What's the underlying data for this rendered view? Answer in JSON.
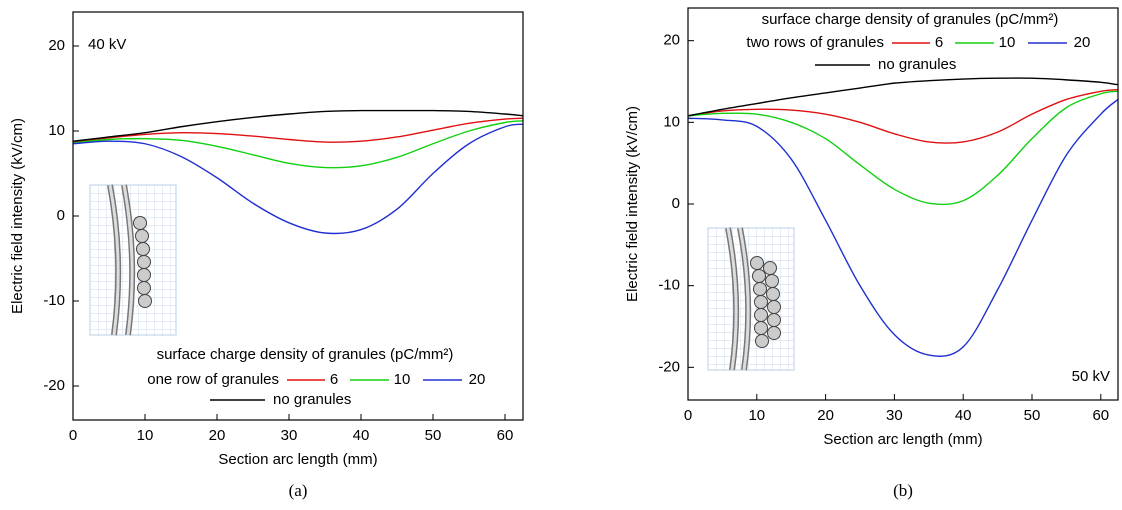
{
  "chart_data": [
    {
      "type": "line",
      "caption": "(a)",
      "annotation": "40 kV",
      "legend": "lower center",
      "legend_title": "surface charge density of granules (pC/mm²)",
      "legend_group_label": "one row of granules",
      "xlabel": "Section arc length (mm)",
      "ylabel": "Electric field intensity (kV/cm)",
      "xlim": [
        0,
        62.5
      ],
      "ylim": [
        -24,
        24
      ],
      "xticks": [
        0,
        10,
        20,
        30,
        40,
        50,
        60
      ],
      "yticks": [
        -20,
        -10,
        0,
        10,
        20
      ],
      "x": [
        0,
        5,
        10,
        15,
        20,
        25,
        30,
        35,
        40,
        45,
        50,
        55,
        60,
        62.5
      ],
      "series": [
        {
          "name": "6",
          "color": "#e01010",
          "values": [
            8.7,
            9.2,
            9.6,
            9.8,
            9.7,
            9.4,
            9.0,
            8.7,
            8.8,
            9.3,
            10.1,
            10.9,
            11.4,
            11.5
          ]
        },
        {
          "name": "10",
          "color": "#10d010",
          "values": [
            8.6,
            9.0,
            9.1,
            8.9,
            8.2,
            7.2,
            6.2,
            5.7,
            5.9,
            6.9,
            8.5,
            10.0,
            11.0,
            11.2
          ]
        },
        {
          "name": "20",
          "color": "#2030d0",
          "values": [
            8.5,
            8.8,
            8.5,
            7.0,
            4.5,
            1.5,
            -0.8,
            -2.0,
            -1.6,
            0.8,
            5.0,
            8.5,
            10.5,
            10.8
          ]
        },
        {
          "name": "no granules",
          "color": "#000000",
          "values": [
            8.8,
            9.3,
            9.8,
            10.5,
            11.1,
            11.6,
            12.0,
            12.3,
            12.4,
            12.4,
            12.4,
            12.3,
            12.0,
            11.8
          ]
        }
      ]
    },
    {
      "type": "line",
      "caption": "(b)",
      "annotation": "50 kV",
      "legend": "upper center",
      "legend_title": "surface charge density of granules (pC/mm²)",
      "legend_group_label": "two rows of granules",
      "xlabel": "Section arc length (mm)",
      "ylabel": "Electric field intensity (kV/cm)",
      "xlim": [
        0,
        62.5
      ],
      "ylim": [
        -24,
        24
      ],
      "xticks": [
        0,
        10,
        20,
        30,
        40,
        50,
        60
      ],
      "yticks": [
        -20,
        -10,
        0,
        10,
        20
      ],
      "x": [
        0,
        5,
        10,
        15,
        20,
        25,
        30,
        35,
        40,
        45,
        50,
        55,
        60,
        62.5
      ],
      "series": [
        {
          "name": "6",
          "color": "#e01010",
          "values": [
            10.8,
            11.4,
            11.6,
            11.5,
            11.0,
            10.0,
            8.6,
            7.6,
            7.6,
            8.8,
            11.0,
            12.8,
            13.8,
            14.0
          ]
        },
        {
          "name": "10",
          "color": "#10d010",
          "values": [
            10.8,
            11.1,
            11.0,
            10.0,
            8.0,
            4.8,
            1.8,
            0.1,
            0.4,
            3.5,
            8.0,
            11.8,
            13.5,
            13.8
          ]
        },
        {
          "name": "20",
          "color": "#2030d0",
          "values": [
            10.5,
            10.3,
            9.5,
            5.5,
            -2.0,
            -10.0,
            -16.0,
            -18.5,
            -17.5,
            -10.5,
            -2.0,
            6.0,
            11.0,
            12.8
          ]
        },
        {
          "name": "no granules",
          "color": "#000000",
          "values": [
            10.8,
            11.6,
            12.3,
            13.0,
            13.6,
            14.2,
            14.8,
            15.1,
            15.3,
            15.4,
            15.4,
            15.2,
            14.9,
            14.6
          ]
        }
      ]
    }
  ]
}
